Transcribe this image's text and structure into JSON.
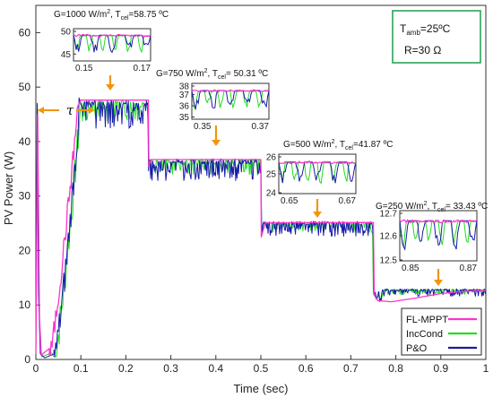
{
  "chart_data": {
    "type": "line",
    "xlabel": "Time (sec)",
    "ylabel": "PV Power (W)",
    "xlim": [
      0,
      1
    ],
    "ylim": [
      0,
      65
    ],
    "xticks": [
      "0",
      "0.1",
      "0.2",
      "0.3",
      "0.4",
      "0.5",
      "0.6",
      "0.7",
      "0.8",
      "0.9",
      "1"
    ],
    "yticks": [
      "0",
      "10",
      "20",
      "30",
      "40",
      "50",
      "60"
    ],
    "grid": false,
    "legend_position": "bottom-right",
    "series": [
      {
        "name": "FL-MPPT",
        "color": "#ff33cc"
      },
      {
        "name": "IncCond",
        "color": "#22dd22"
      },
      {
        "name": "P&O",
        "color": "#1a1aaa"
      }
    ],
    "conditions_box": {
      "tamb_prefix": "T",
      "tamb_sub": "amb",
      "tamb_suffix": "=25ºC",
      "r_text": "R=30 Ω"
    },
    "tau_label": "τ",
    "steps": [
      {
        "g_text": "G=1000 W/m",
        "g_sup": "2",
        "t_text": ", T",
        "t_sub": "cel",
        "t_val": "=58.75 ºC",
        "t_start": 0.1,
        "t_end": 0.25,
        "p_fl": 47.6,
        "p_osc": 47.2,
        "inset": {
          "x_ticks": [
            "0.15",
            "0.17"
          ],
          "y_ticks": [
            "45",
            "50"
          ],
          "ymin": 43.5,
          "ymax": 50.5
        }
      },
      {
        "g_text": "G=750 W/m",
        "g_sup": "2",
        "t_text": ", T",
        "t_sub": "cel",
        "t_val": "= 50.31 ºC",
        "t_start": 0.25,
        "t_end": 0.5,
        "p_fl": 36.7,
        "p_osc": 36.5,
        "inset": {
          "x_ticks": [
            "0.35",
            "0.37"
          ],
          "y_ticks": [
            "35",
            "36",
            "37",
            "38"
          ],
          "ymin": 34.8,
          "ymax": 38
        }
      },
      {
        "g_text": "G=500 W/m",
        "g_sup": "2",
        "t_text": ", T",
        "t_sub": "cel",
        "t_val": "=41.87 ºC",
        "t_start": 0.5,
        "t_end": 0.75,
        "p_fl": 25.15,
        "p_osc": 25.0,
        "inset": {
          "x_ticks": [
            "0.65",
            "0.67"
          ],
          "y_ticks": [
            "24",
            "25",
            "26"
          ],
          "ymin": 24,
          "ymax": 26
        }
      },
      {
        "g_text": "G=250 W/m",
        "g_sup": "2",
        "t_text": ", T",
        "t_sub": "cel",
        "t_val": "= 33.43 ºC",
        "t_start": 0.75,
        "t_end": 1.0,
        "p_fl": 12.65,
        "p_osc": 12.6,
        "inset": {
          "x_ticks": [
            "0.85",
            "0.87"
          ],
          "y_ticks": [
            "12.5",
            "12.6",
            "12.7"
          ],
          "ymin": 12.5,
          "ymax": 12.7
        }
      }
    ]
  }
}
